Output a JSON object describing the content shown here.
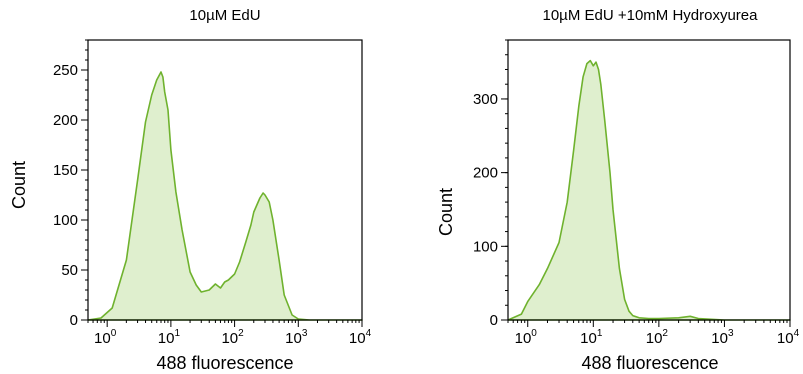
{
  "chart_data": [
    {
      "type": "area",
      "title": "10µM EdU",
      "xlabel": "488 fluorescence",
      "ylabel": "Count",
      "xscale": "log",
      "xlim": [
        0.5,
        10000
      ],
      "ylim": [
        0,
        280
      ],
      "x_ticks": [
        {
          "base": "10",
          "exp": "0",
          "value": 1
        },
        {
          "base": "10",
          "exp": "1",
          "value": 10
        },
        {
          "base": "10",
          "exp": "2",
          "value": 100
        },
        {
          "base": "10",
          "exp": "3",
          "value": 1000
        },
        {
          "base": "10",
          "exp": "4",
          "value": 10000
        }
      ],
      "y_ticks": [
        {
          "label": "0",
          "value": 0
        },
        {
          "label": "50",
          "value": 50
        },
        {
          "label": "100",
          "value": 100
        },
        {
          "label": "150",
          "value": 150
        },
        {
          "label": "200",
          "value": 200
        },
        {
          "label": "250",
          "value": 250
        }
      ],
      "series": [
        {
          "x": [
            0.5,
            0.8,
            1.2,
            2,
            3,
            4,
            5,
            6,
            7,
            7.5,
            8,
            9,
            10,
            12,
            15,
            20,
            25,
            30,
            40,
            50,
            60,
            70,
            80,
            100,
            120,
            150,
            180,
            200,
            250,
            280,
            300,
            350,
            400,
            500,
            600,
            800,
            1000,
            1500,
            10000
          ],
          "y": [
            0,
            2,
            12,
            60,
            140,
            198,
            225,
            240,
            248,
            243,
            228,
            210,
            170,
            128,
            90,
            48,
            35,
            28,
            30,
            36,
            32,
            38,
            40,
            46,
            58,
            78,
            95,
            108,
            122,
            127,
            125,
            118,
            100,
            60,
            25,
            5,
            1,
            0,
            0
          ]
        }
      ],
      "grid": false,
      "color": "#6fb22e",
      "fill_color": "#d9ecc6"
    },
    {
      "type": "area",
      "title": "10µM EdU +10mM Hydroxyurea",
      "xlabel": "488 fluorescence",
      "ylabel": "Count",
      "xscale": "log",
      "xlim": [
        0.5,
        10000
      ],
      "ylim": [
        0,
        380
      ],
      "x_ticks": [
        {
          "base": "10",
          "exp": "0",
          "value": 1
        },
        {
          "base": "10",
          "exp": "1",
          "value": 10
        },
        {
          "base": "10",
          "exp": "2",
          "value": 100
        },
        {
          "base": "10",
          "exp": "3",
          "value": 1000
        },
        {
          "base": "10",
          "exp": "4",
          "value": 10000
        }
      ],
      "y_ticks": [
        {
          "label": "0",
          "value": 0
        },
        {
          "label": "100",
          "value": 100
        },
        {
          "label": "200",
          "value": 200
        },
        {
          "label": "300",
          "value": 300
        }
      ],
      "series": [
        {
          "x": [
            0.5,
            0.8,
            1,
            1.5,
            2,
            3,
            4,
            5,
            6,
            7,
            8,
            9,
            10,
            11,
            12,
            13,
            15,
            18,
            20,
            25,
            30,
            35,
            40,
            50,
            70,
            100,
            200,
            300,
            400,
            1000,
            10000
          ],
          "y": [
            0,
            8,
            25,
            48,
            70,
            105,
            160,
            230,
            290,
            330,
            348,
            352,
            345,
            350,
            340,
            320,
            270,
            200,
            150,
            70,
            28,
            12,
            6,
            3,
            2,
            2,
            3,
            5,
            2,
            0,
            0
          ]
        }
      ],
      "grid": false,
      "color": "#6fb22e",
      "fill_color": "#d9ecc6"
    }
  ]
}
